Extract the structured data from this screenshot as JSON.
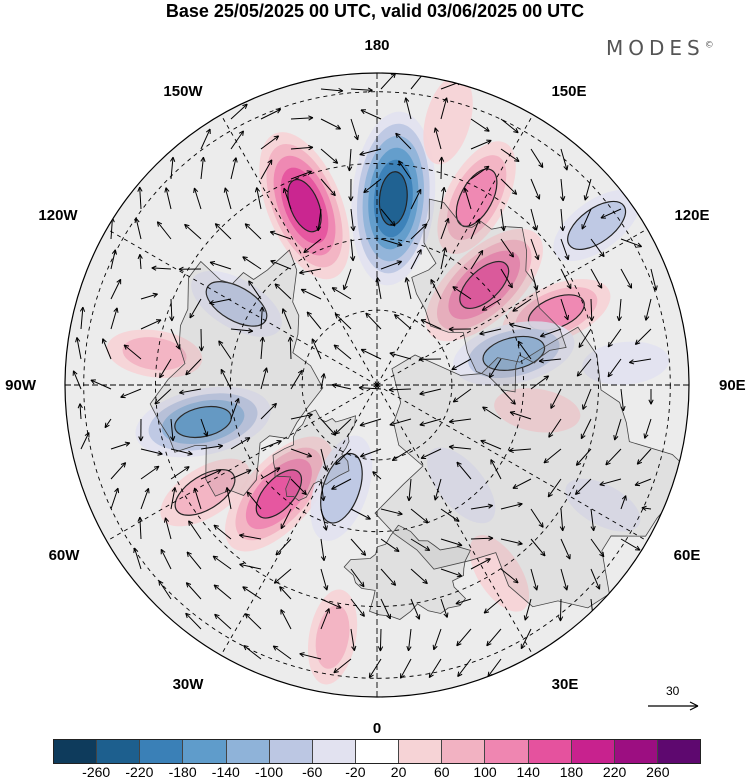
{
  "title": "Base 25/05/2025 00 UTC, valid 03/06/2025 00 UTC",
  "logo": {
    "text": "MODES",
    "mark": "©"
  },
  "longitude_labels": {
    "top": "180",
    "bottom": "0",
    "left": "90W",
    "right": "90E",
    "upper_left_1": "150W",
    "upper_left_2": "120W",
    "upper_right_1": "150E",
    "upper_right_2": "120E",
    "lower_left_1": "60W",
    "lower_left_2": "30W",
    "lower_right_1": "60E",
    "lower_right_2": "30E"
  },
  "reference_vector": {
    "label": "30"
  },
  "colorbar": {
    "colors": [
      "#0e3b5c",
      "#1d5f8e",
      "#3a80b7",
      "#5f9ccb",
      "#8fb3d9",
      "#bcc7e3",
      "#e2e2f0",
      "#ffffff",
      "#f6d3d6",
      "#f2b2c2",
      "#ef86b1",
      "#e5529e",
      "#c8228e",
      "#9c0e81",
      "#5e086f"
    ],
    "labels": [
      "-260",
      "-220",
      "-180",
      "-140",
      "-100",
      "-60",
      "-20",
      "20",
      "60",
      "100",
      "140",
      "180",
      "220",
      "260"
    ]
  },
  "anomaly_centers": [
    {
      "lon": -158,
      "r": 0.62,
      "value": 190
    },
    {
      "lon": 175,
      "r": 0.6,
      "value": -230
    },
    {
      "lon": 152,
      "r": 0.68,
      "value": 120
    },
    {
      "lon": 133,
      "r": 0.47,
      "value": 170
    },
    {
      "lon": 112,
      "r": 0.62,
      "value": 100
    },
    {
      "lon": 126,
      "r": 0.87,
      "value": -70
    },
    {
      "lon": 103,
      "r": 0.45,
      "value": -120
    },
    {
      "lon": 81,
      "r": 0.52,
      "value": 40
    },
    {
      "lon": 95,
      "r": 0.8,
      "value": -40
    },
    {
      "lon": 62,
      "r": 0.82,
      "value": -30
    },
    {
      "lon": -78,
      "r": 0.57,
      "value": -150
    },
    {
      "lon": -42,
      "r": 0.47,
      "value": 160
    },
    {
      "lon": -58,
      "r": 0.65,
      "value": 70
    },
    {
      "lon": -19,
      "r": 0.35,
      "value": -90
    },
    {
      "lon": -10,
      "r": 0.82,
      "value": 60
    },
    {
      "lon": 33,
      "r": 0.72,
      "value": 40
    },
    {
      "lon": -120,
      "r": 0.52,
      "value": -70
    },
    {
      "lon": -98,
      "r": 0.72,
      "value": 60
    },
    {
      "lon": 40,
      "r": 0.42,
      "value": -50
    },
    {
      "lon": 165,
      "r": 0.88,
      "value": 50
    }
  ]
}
